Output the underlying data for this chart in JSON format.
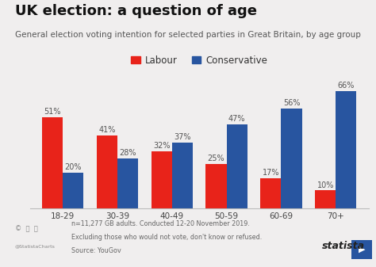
{
  "title": "UK election: a question of age",
  "subtitle": "General election voting intention for selected parties in Great Britain, by age group",
  "categories": [
    "18-29",
    "30-39",
    "40-49",
    "50-59",
    "60-69",
    "70+"
  ],
  "labour": [
    51,
    41,
    32,
    25,
    17,
    10
  ],
  "conservative": [
    20,
    28,
    37,
    47,
    56,
    66
  ],
  "labour_color": "#e8231a",
  "conservative_color": "#2855a0",
  "bg_color": "#f0eeee",
  "bar_width": 0.38,
  "ylim": [
    0,
    75
  ],
  "legend_labels": [
    "Labour",
    "Conservative"
  ],
  "footnote_line1": "n=11,277 GB adults. Conducted 12-20 November 2019.",
  "footnote_line2": "Excluding those who would not vote, don't know or refused.",
  "footnote_line3": "Source: YouGov",
  "title_fontsize": 13,
  "subtitle_fontsize": 7.5,
  "label_fontsize": 7,
  "tick_fontsize": 7.5,
  "legend_fontsize": 8.5,
  "footnote_fontsize": 5.8
}
